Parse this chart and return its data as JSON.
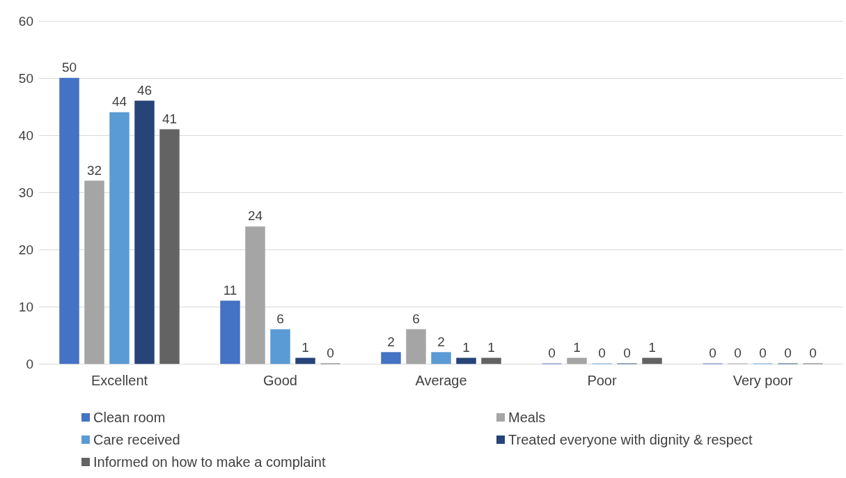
{
  "chart_data": {
    "type": "bar",
    "categories": [
      "Excellent",
      "Good",
      "Average",
      "Poor",
      "Very poor"
    ],
    "series": [
      {
        "name": "Clean room",
        "color": "#4472c4",
        "values": [
          50,
          11,
          2,
          0,
          0
        ]
      },
      {
        "name": "Meals",
        "color": "#a5a5a5",
        "values": [
          32,
          24,
          6,
          1,
          0
        ]
      },
      {
        "name": "Care received",
        "color": "#5b9bd5",
        "values": [
          44,
          6,
          2,
          0,
          0
        ]
      },
      {
        "name": "Treated everyone with dignity & respect",
        "color": "#264478",
        "values": [
          46,
          1,
          1,
          0,
          0
        ]
      },
      {
        "name": "Informed on how to make a complaint",
        "color": "#636363",
        "values": [
          41,
          0,
          1,
          1,
          0
        ]
      }
    ],
    "ylim": [
      0,
      60
    ],
    "yticks": [
      0,
      10,
      20,
      30,
      40,
      50,
      60
    ],
    "grid": "y",
    "legend": "bottom",
    "data_labels": true
  }
}
